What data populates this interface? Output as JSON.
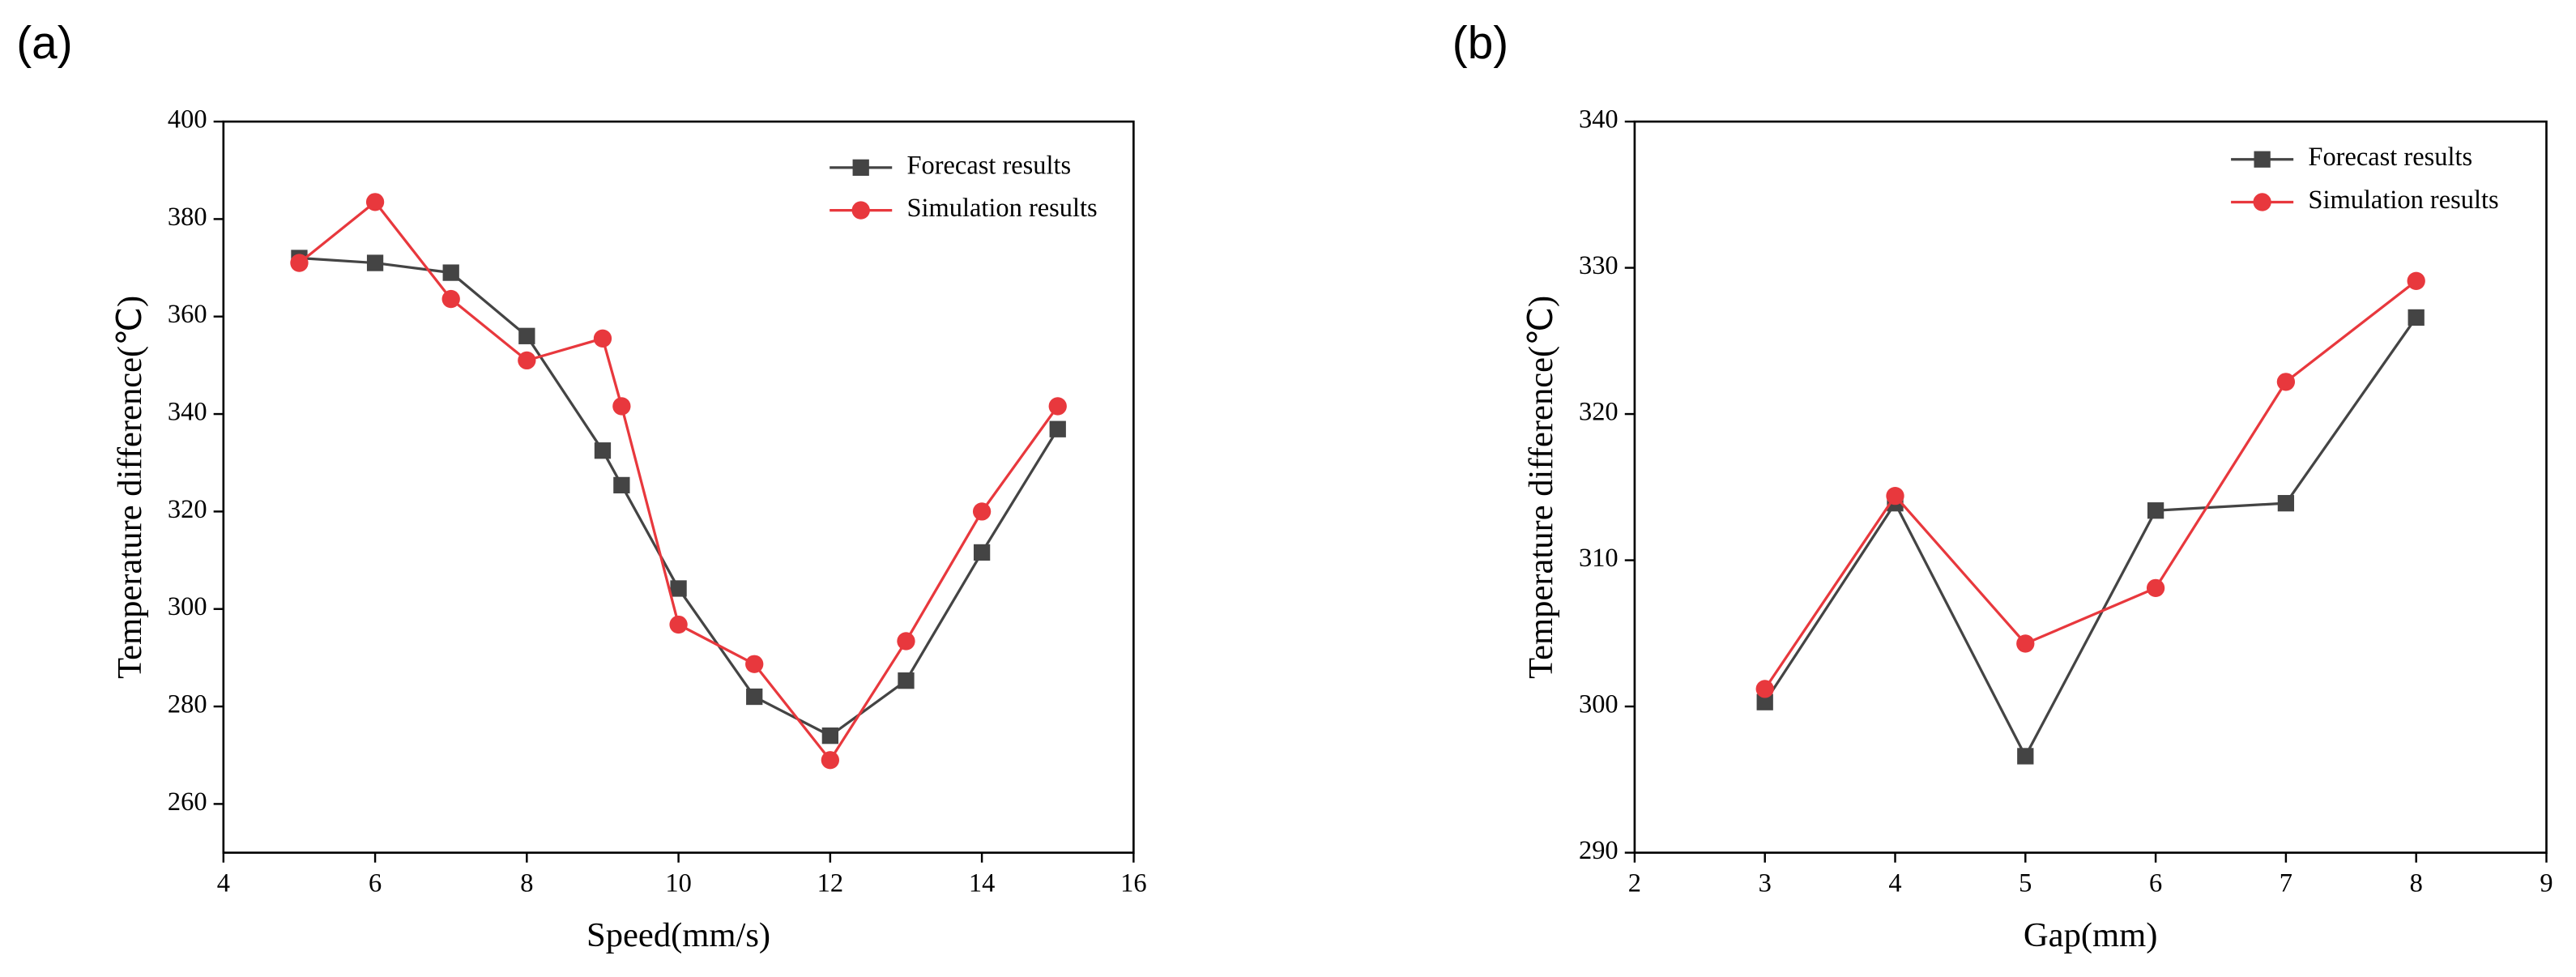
{
  "chart_data": [
    {
      "type": "line",
      "panel": "(a)",
      "x_label": "Speed(mm/s)",
      "y_label": "Temperature difference(℃)",
      "xlim": [
        4,
        16
      ],
      "xticks": [
        4,
        6,
        8,
        10,
        12,
        14,
        16
      ],
      "ylim": [
        250,
        400
      ],
      "yticks": [
        260,
        280,
        300,
        320,
        340,
        360,
        380,
        400
      ],
      "legend": "upper right",
      "x": [
        5,
        6,
        7,
        8,
        9,
        9.25,
        10,
        11,
        12,
        13,
        14,
        15
      ],
      "series": [
        {
          "name": "Forecast results",
          "color": "#444444",
          "marker": "square",
          "values": [
            372,
            371,
            369,
            356,
            332.5,
            325.4,
            304.2,
            282,
            274,
            285.3,
            311.6,
            336.9
          ]
        },
        {
          "name": "Simulation results",
          "color": "#e8383d",
          "marker": "circle",
          "values": [
            371,
            383.5,
            363.6,
            351,
            355.5,
            341.6,
            296.8,
            288.7,
            269,
            293.4,
            320,
            341.6
          ]
        }
      ]
    },
    {
      "type": "line",
      "panel": "(b)",
      "x_label": "Gap(mm)",
      "y_label": "Temperature difference(℃)",
      "xlim": [
        2,
        9
      ],
      "xticks": [
        2,
        3,
        4,
        5,
        6,
        7,
        8,
        9
      ],
      "ylim": [
        290,
        340
      ],
      "yticks": [
        290,
        300,
        310,
        320,
        330,
        340
      ],
      "legend": "upper right",
      "x": [
        3,
        4,
        5,
        6,
        7,
        8
      ],
      "series": [
        {
          "name": "Forecast results",
          "color": "#444444",
          "marker": "square",
          "values": [
            300.3,
            313.9,
            296.6,
            313.4,
            313.9,
            326.6
          ]
        },
        {
          "name": "Simulation results",
          "color": "#e8383d",
          "marker": "circle",
          "values": [
            301.2,
            314.4,
            304.3,
            308.1,
            322.2,
            329.1
          ]
        }
      ]
    }
  ]
}
